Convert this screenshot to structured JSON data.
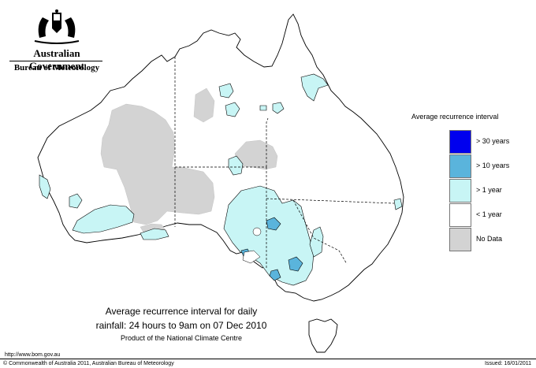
{
  "header": {
    "government": "Australian Government",
    "bureau": "Bureau of Meteorology"
  },
  "legend": {
    "title": "Average recurrence interval",
    "items": [
      {
        "label": "> 30 years",
        "color": "#0000ee"
      },
      {
        "label": "> 10 years",
        "color": "#5ab4dc"
      },
      {
        "label": "> 1 year",
        "color": "#c8f5f5"
      },
      {
        "label": "< 1 year",
        "color": "#ffffff"
      },
      {
        "label": "No Data",
        "color": "#d3d3d3"
      }
    ]
  },
  "map_title": {
    "line1": "Average recurrence interval for daily",
    "line2": "rainfall: 24 hours to 9am on 07 Dec 2010",
    "line3": "Product of the National Climate Centre"
  },
  "footer": {
    "url": "http://www.bom.gov.au",
    "copyright": "© Commonwealth of Australia 2011, Australian Bureau of Meteorology",
    "issued": "Issued: 16/01/2011"
  }
}
